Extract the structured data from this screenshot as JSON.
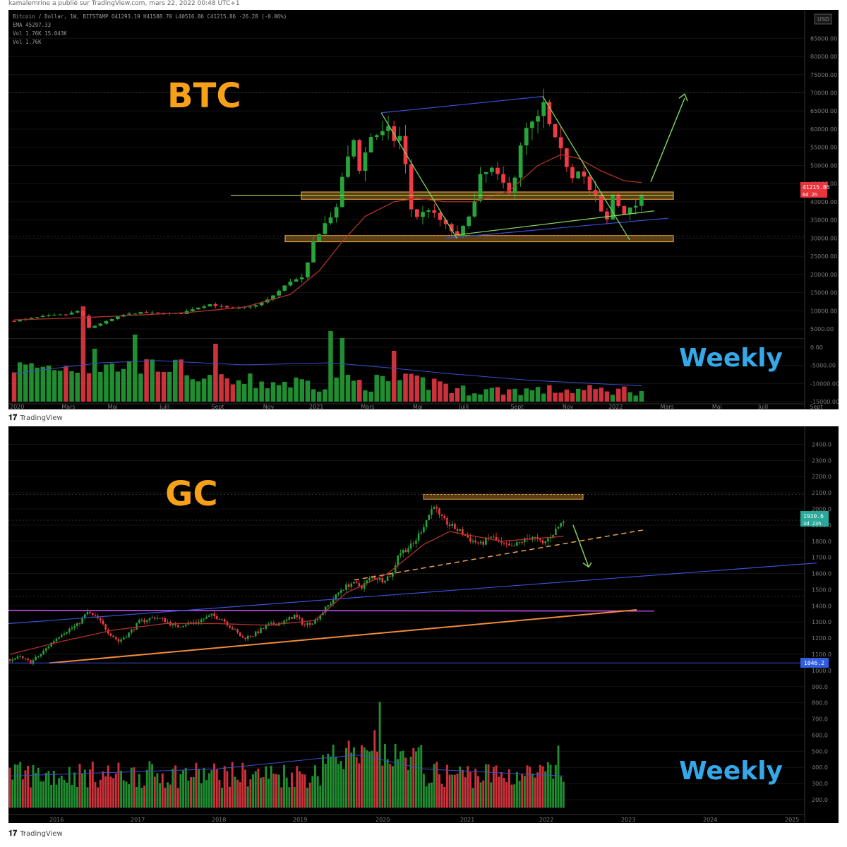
{
  "caption": "kamalemrine a publié sur TradingView.com, mars 22, 2022 00:48 UTC+1",
  "footer": {
    "brand": "TradingView"
  },
  "colors": {
    "background": "#000000",
    "up": "#26a63a",
    "down": "#ef3b45",
    "title": "#f7a11a",
    "weekly": "#35a8ea",
    "ema": "#c0392b",
    "zone": "#c8882a",
    "trend_green": "#7fd05b",
    "trend_blue": "#3a4fd6",
    "purple": "#b24ad8",
    "orange_line": "#f08a3a"
  },
  "chart_data": [
    {
      "type": "candlestick",
      "title": "BTC",
      "subtitle": "Weekly",
      "header": "Bitcoin / Dollar, 1W, BITSTAMP  O41293.19  H41588.70  L40516.86  C41215.86  -26.28 (-0.06%)",
      "ema_label": "EMA  45297.33",
      "vol_label_1": "Vol  1.76K  15.043K",
      "vol_label_2": "Vol  1.76K",
      "currency": "USD",
      "price_ticks": [
        "85000.00",
        "80000.00",
        "75000.00",
        "70000.00",
        "65000.00",
        "60000.00",
        "55000.00",
        "50000.00",
        "45000.00",
        "40000.00",
        "35000.00",
        "30000.00",
        "25000.00",
        "20000.00",
        "15000.00",
        "10000.00",
        "5000.00",
        "0.00",
        "-5000.00",
        "-10000.00",
        "-15000.00"
      ],
      "price_range": [
        -15000,
        87000
      ],
      "x_ticks": [
        "2020",
        "Mars",
        "Mai",
        "Juill",
        "Sept",
        "Nov",
        "2021",
        "Mars",
        "Mai",
        "Juill",
        "Sept",
        "Nov",
        "2022",
        "Mars",
        "Mai",
        "Juill",
        "Sept"
      ],
      "last_price": "41215.86",
      "last_price_sub": "6d 2h",
      "zones": [
        [
          40700,
          42700
        ],
        [
          29000,
          30700
        ]
      ],
      "close_path": [
        [
          0,
          7200
        ],
        [
          3,
          8000
        ],
        [
          6,
          8700
        ],
        [
          9,
          9000
        ],
        [
          11,
          9900
        ],
        [
          12,
          8500
        ],
        [
          13,
          5300
        ],
        [
          15,
          6500
        ],
        [
          19,
          8900
        ],
        [
          22,
          9500
        ],
        [
          26,
          9300
        ],
        [
          29,
          9200
        ],
        [
          31,
          10500
        ],
        [
          34,
          11800
        ],
        [
          38,
          10500
        ],
        [
          42,
          11500
        ],
        [
          44,
          13000
        ],
        [
          46,
          15500
        ],
        [
          48,
          18200
        ],
        [
          50,
          19000
        ],
        [
          51,
          23000
        ],
        [
          52,
          29000
        ],
        [
          54,
          34000
        ],
        [
          56,
          38000
        ],
        [
          57,
          47000
        ],
        [
          59,
          57000
        ],
        [
          60,
          49000
        ],
        [
          62,
          58000
        ],
        [
          64,
          59000
        ],
        [
          65,
          60000
        ],
        [
          66,
          57000
        ],
        [
          67,
          58000
        ],
        [
          68,
          50000
        ],
        [
          69,
          38000
        ],
        [
          70,
          36000
        ],
        [
          72,
          38000
        ],
        [
          74,
          35000
        ],
        [
          76,
          32000
        ],
        [
          77,
          30200
        ],
        [
          78,
          33000
        ],
        [
          80,
          40000
        ],
        [
          81,
          47000
        ],
        [
          83,
          49000
        ],
        [
          84,
          47000
        ],
        [
          86,
          43000
        ],
        [
          87,
          47000
        ],
        [
          88,
          55000
        ],
        [
          89,
          60000
        ],
        [
          91,
          63000
        ],
        [
          92,
          67000
        ],
        [
          93,
          61000
        ],
        [
          94,
          57000
        ],
        [
          95,
          54000
        ],
        [
          96,
          50000
        ],
        [
          97,
          47000
        ],
        [
          98,
          49000
        ],
        [
          99,
          47000
        ],
        [
          100,
          43000
        ],
        [
          101,
          41500
        ],
        [
          102,
          37000
        ],
        [
          103,
          35000
        ],
        [
          104,
          42000
        ],
        [
          105,
          39000
        ],
        [
          106,
          37000
        ],
        [
          107,
          38000
        ],
        [
          108,
          39000
        ],
        [
          109,
          41215
        ]
      ],
      "ema_path": [
        [
          0,
          7500
        ],
        [
          10,
          8000
        ],
        [
          20,
          8700
        ],
        [
          30,
          9500
        ],
        [
          40,
          11000
        ],
        [
          48,
          14500
        ],
        [
          53,
          21000
        ],
        [
          57,
          29000
        ],
        [
          61,
          36000
        ],
        [
          66,
          40000
        ],
        [
          70,
          41000
        ],
        [
          75,
          40000
        ],
        [
          80,
          40000
        ],
        [
          86,
          43000
        ],
        [
          91,
          50000
        ],
        [
          95,
          53000
        ],
        [
          98,
          52000
        ],
        [
          102,
          48500
        ],
        [
          106,
          45800
        ],
        [
          109,
          45300
        ]
      ],
      "volume_ticks_note": "volume bars share lower pane"
    },
    {
      "type": "candlestick",
      "title": "GC",
      "subtitle": "Weekly",
      "price_ticks": [
        "2400.0",
        "2300.0",
        "2200.0",
        "2100.0",
        "2000.0",
        "1900.0",
        "1800.0",
        "1700.0",
        "1600.0",
        "1500.0",
        "1400.0",
        "1300.0",
        "1200.0",
        "1100.0",
        "1000.0",
        "900.0",
        "800.0",
        "700.0",
        "600.0",
        "500.0",
        "400.0",
        "300.0",
        "200.0"
      ],
      "price_range": [
        130,
        2450
      ],
      "x_ticks": [
        "2016",
        "2017",
        "2018",
        "2019",
        "2020",
        "2021",
        "2022",
        "2023",
        "2024",
        "2025"
      ],
      "last_price": "1930.6",
      "last_price_sub": "3d 23h",
      "level_label": "1046.2",
      "zone": [
        2060,
        2090
      ],
      "close_path": [
        [
          0,
          1070
        ],
        [
          4,
          1080
        ],
        [
          8,
          1050
        ],
        [
          12,
          1100
        ],
        [
          16,
          1170
        ],
        [
          20,
          1230
        ],
        [
          26,
          1280
        ],
        [
          30,
          1360
        ],
        [
          34,
          1320
        ],
        [
          38,
          1240
        ],
        [
          42,
          1180
        ],
        [
          46,
          1230
        ],
        [
          50,
          1300
        ],
        [
          56,
          1330
        ],
        [
          60,
          1310
        ],
        [
          64,
          1270
        ],
        [
          68,
          1290
        ],
        [
          72,
          1300
        ],
        [
          78,
          1340
        ],
        [
          82,
          1320
        ],
        [
          86,
          1260
        ],
        [
          90,
          1200
        ],
        [
          94,
          1220
        ],
        [
          100,
          1280
        ],
        [
          106,
          1300
        ],
        [
          110,
          1340
        ],
        [
          114,
          1280
        ],
        [
          118,
          1310
        ],
        [
          124,
          1420
        ],
        [
          128,
          1500
        ],
        [
          132,
          1540
        ],
        [
          136,
          1520
        ],
        [
          140,
          1580
        ],
        [
          144,
          1560
        ],
        [
          148,
          1600
        ],
        [
          150,
          1720
        ],
        [
          156,
          1780
        ],
        [
          160,
          1900
        ],
        [
          164,
          2030
        ],
        [
          166,
          1950
        ],
        [
          170,
          1900
        ],
        [
          174,
          1860
        ],
        [
          178,
          1810
        ],
        [
          182,
          1780
        ],
        [
          186,
          1830
        ],
        [
          190,
          1780
        ],
        [
          194,
          1760
        ],
        [
          198,
          1800
        ],
        [
          202,
          1830
        ],
        [
          206,
          1780
        ],
        [
          210,
          1850
        ],
        [
          214,
          1930
        ]
      ],
      "ema_path": [
        [
          0,
          1100
        ],
        [
          20,
          1180
        ],
        [
          40,
          1250
        ],
        [
          60,
          1290
        ],
        [
          80,
          1290
        ],
        [
          100,
          1280
        ],
        [
          118,
          1310
        ],
        [
          130,
          1480
        ],
        [
          146,
          1600
        ],
        [
          160,
          1780
        ],
        [
          170,
          1860
        ],
        [
          190,
          1800
        ],
        [
          214,
          1830
        ]
      ]
    }
  ]
}
